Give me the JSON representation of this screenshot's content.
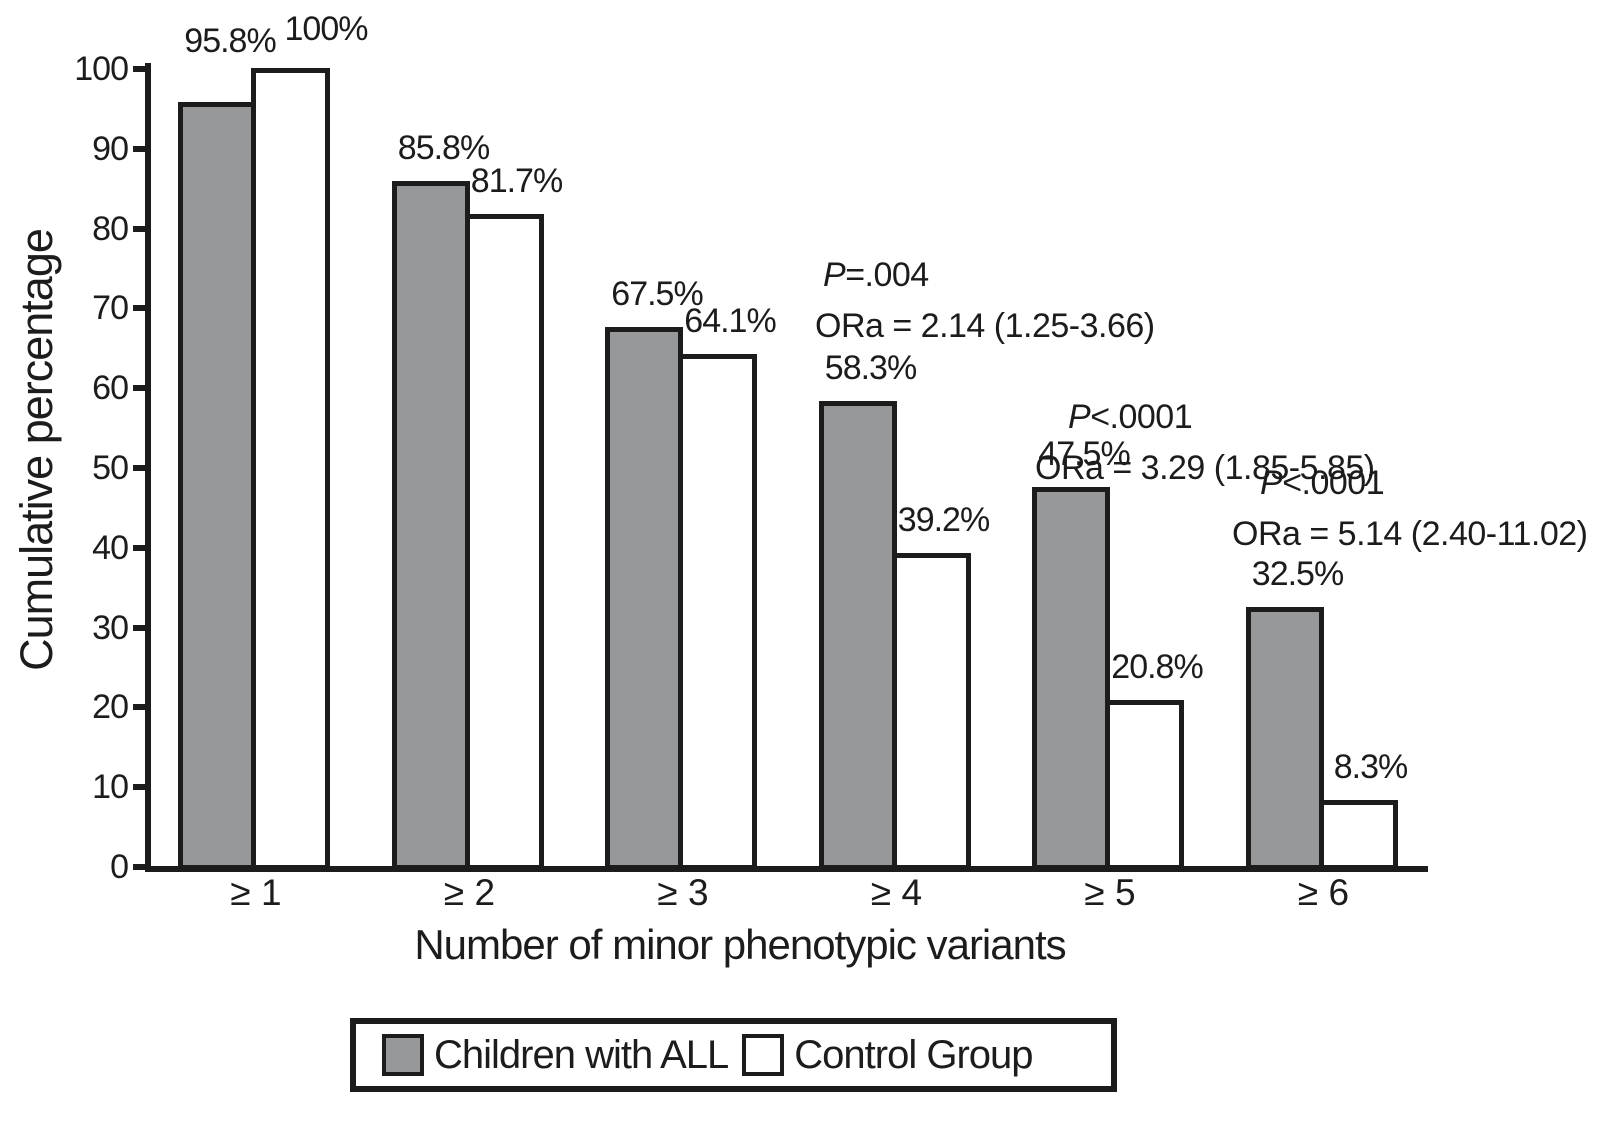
{
  "chart_data": {
    "type": "bar",
    "title": "",
    "categories": [
      "≥ 1",
      "≥ 2",
      "≥ 3",
      "≥ 4",
      "≥ 5",
      "≥ 6"
    ],
    "series": [
      {
        "name": "Children with ALL",
        "color": "#97989a",
        "values": [
          95.8,
          85.8,
          67.5,
          58.3,
          47.5,
          32.5
        ],
        "labels": [
          "95.8%",
          "85.8%",
          "67.5%",
          "58.3%",
          "47.5%",
          "32.5%"
        ]
      },
      {
        "name": "Control Group",
        "color": "#ffffff",
        "values": [
          100,
          81.7,
          64.1,
          39.2,
          20.8,
          8.3
        ],
        "labels": [
          "100%",
          "81.7%",
          "64.1%",
          "39.2%",
          "20.8%",
          "8.3%"
        ]
      }
    ],
    "xlabel": "Number of minor phenotypic variants",
    "ylabel": "Cumulative percentage",
    "ylim": [
      0,
      100
    ],
    "yticks": [
      0,
      10,
      20,
      30,
      40,
      50,
      60,
      70,
      80,
      90,
      100
    ],
    "grid": false,
    "legend_position": "bottom",
    "annotations": [
      {
        "p": "P=.004",
        "ora": "ORa = 2.14 (1.25-3.66)",
        "category": "≥ 4"
      },
      {
        "p": "P<.0001",
        "ora": "ORa = 3.29 (1.85-5.85)",
        "category": "≥ 5"
      },
      {
        "p": "P<.0001",
        "ora": "ORa = 5.14 (2.40-11.02)",
        "category": "≥ 6"
      }
    ]
  },
  "legend": {
    "items": [
      {
        "label": "Children with ALL"
      },
      {
        "label": "Control Group"
      }
    ]
  }
}
